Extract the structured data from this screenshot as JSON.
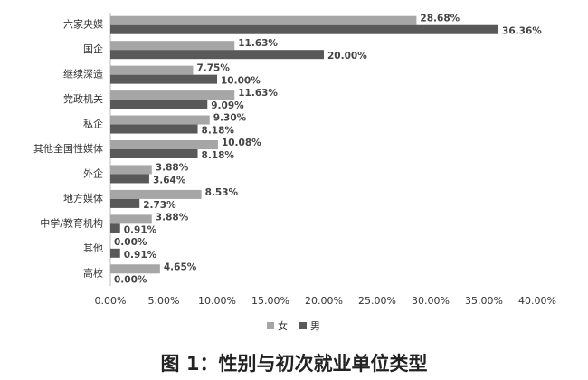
{
  "chart_data": {
    "type": "barh",
    "title": "图 1：性别与初次就业单位类型",
    "categories": [
      "六家央媒",
      "国企",
      "继续深造",
      "党政机关",
      "私企",
      "其他全国性媒体",
      "外企",
      "地方媒体",
      "中学/教育机构",
      "其他",
      "高校"
    ],
    "series": [
      {
        "name": "女",
        "color": "#a6a6a6",
        "values": [
          28.68,
          11.63,
          7.75,
          11.63,
          9.3,
          10.08,
          3.88,
          8.53,
          3.88,
          0.0,
          4.65
        ],
        "value_labels": [
          "28.68%",
          "11.63%",
          "7.75%",
          "11.63%",
          "9.30%",
          "10.08%",
          "3.88%",
          "8.53%",
          "3.88%",
          "0.00%",
          "4.65%"
        ]
      },
      {
        "name": "男",
        "color": "#595959",
        "values": [
          36.36,
          20.0,
          10.0,
          9.09,
          8.18,
          8.18,
          3.64,
          2.73,
          0.91,
          0.91,
          0.0
        ],
        "value_labels": [
          "36.36%",
          "20.00%",
          "10.00%",
          "9.09%",
          "8.18%",
          "8.18%",
          "3.64%",
          "2.73%",
          "0.91%",
          "0.91%",
          "0.00%"
        ]
      }
    ],
    "xlim": [
      0,
      40
    ],
    "xticks": [
      {
        "value": 0,
        "label": "0.00%"
      },
      {
        "value": 5,
        "label": "5.00%"
      },
      {
        "value": 10,
        "label": "10.00%"
      },
      {
        "value": 15,
        "label": "15.00%"
      },
      {
        "value": 20,
        "label": "20.00%"
      },
      {
        "value": 25,
        "label": "25.00%"
      },
      {
        "value": 30,
        "label": "30.00%"
      },
      {
        "value": 35,
        "label": "35.00%"
      },
      {
        "value": 40,
        "label": "40.00%"
      }
    ],
    "legend": "bottom"
  }
}
